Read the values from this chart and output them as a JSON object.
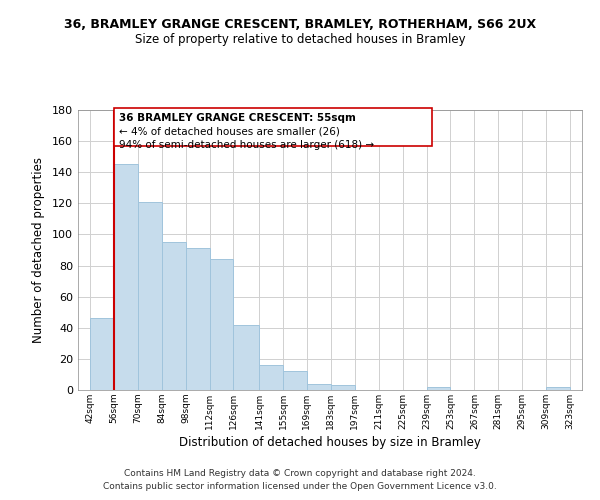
{
  "title": "36, BRAMLEY GRANGE CRESCENT, BRAMLEY, ROTHERHAM, S66 2UX",
  "subtitle": "Size of property relative to detached houses in Bramley",
  "xlabel": "Distribution of detached houses by size in Bramley",
  "ylabel": "Number of detached properties",
  "bar_left_edges": [
    42,
    56,
    70,
    84,
    98,
    112,
    126,
    141,
    155,
    169,
    183,
    197,
    211,
    225,
    239,
    253,
    267,
    281,
    295,
    309
  ],
  "bar_widths": [
    14,
    14,
    14,
    14,
    14,
    14,
    15,
    14,
    14,
    14,
    14,
    14,
    14,
    14,
    14,
    14,
    14,
    14,
    14,
    14
  ],
  "bar_heights": [
    46,
    145,
    121,
    95,
    91,
    84,
    42,
    16,
    12,
    4,
    3,
    0,
    0,
    0,
    2,
    0,
    0,
    0,
    0,
    2
  ],
  "bar_color": "#c6dcec",
  "bar_edge_color": "#a0c4dc",
  "highlight_line_x": 56,
  "highlight_line_color": "#cc0000",
  "annotation_text1": "36 BRAMLEY GRANGE CRESCENT: 55sqm",
  "annotation_text2": "← 4% of detached houses are smaller (26)",
  "annotation_text3": "94% of semi-detached houses are larger (618) →",
  "xtick_labels": [
    "42sqm",
    "56sqm",
    "70sqm",
    "84sqm",
    "98sqm",
    "112sqm",
    "126sqm",
    "141sqm",
    "155sqm",
    "169sqm",
    "183sqm",
    "197sqm",
    "211sqm",
    "225sqm",
    "239sqm",
    "253sqm",
    "267sqm",
    "281sqm",
    "295sqm",
    "309sqm",
    "323sqm"
  ],
  "xtick_positions": [
    42,
    56,
    70,
    84,
    98,
    112,
    126,
    141,
    155,
    169,
    183,
    197,
    211,
    225,
    239,
    253,
    267,
    281,
    295,
    309,
    323
  ],
  "ylim": [
    0,
    180
  ],
  "xlim": [
    35,
    330
  ],
  "yticks": [
    0,
    20,
    40,
    60,
    80,
    100,
    120,
    140,
    160,
    180
  ],
  "grid_color": "#d0d0d0",
  "background_color": "#ffffff",
  "footer_line1": "Contains HM Land Registry data © Crown copyright and database right 2024.",
  "footer_line2": "Contains public sector information licensed under the Open Government Licence v3.0."
}
